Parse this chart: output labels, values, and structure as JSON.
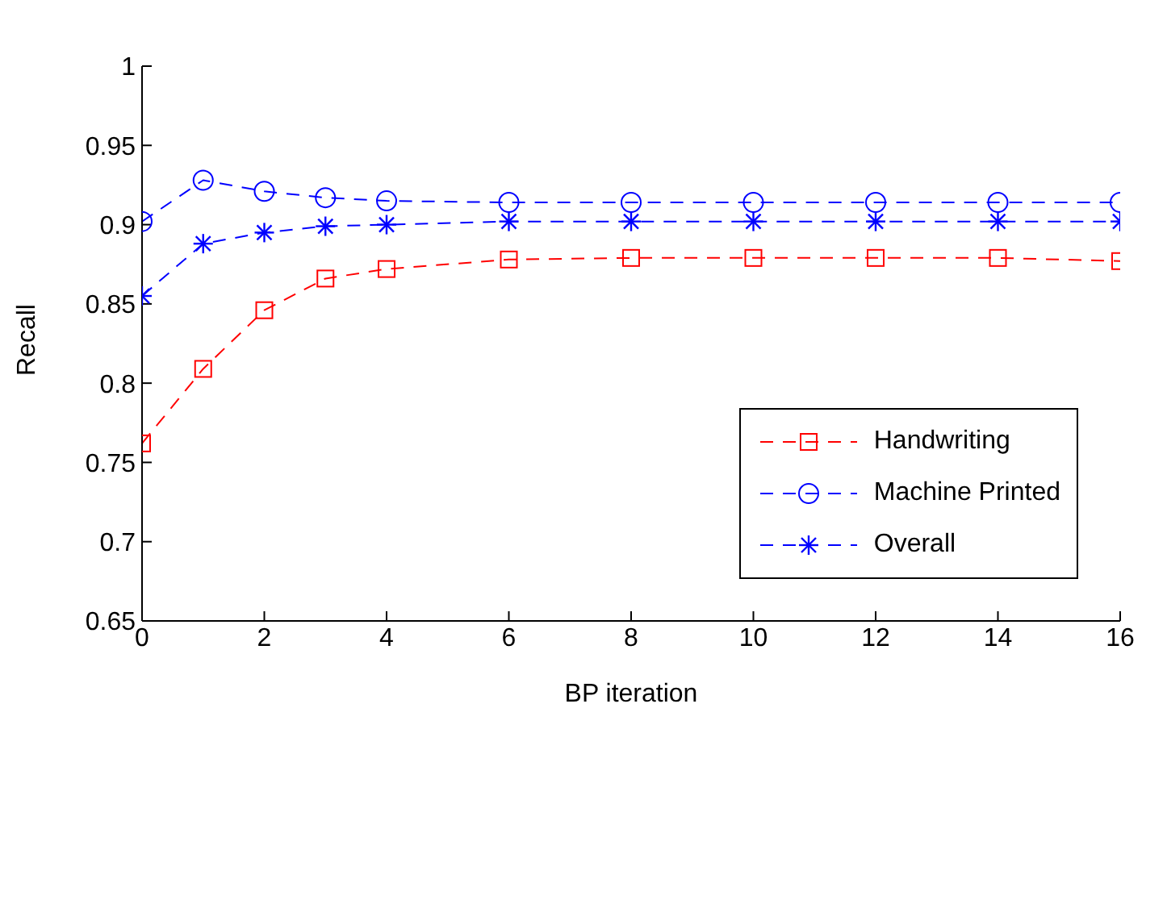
{
  "chart_data": {
    "type": "line",
    "xlabel": "BP iteration",
    "ylabel": "Recall",
    "x": [
      0,
      1,
      2,
      3,
      4,
      6,
      8,
      10,
      12,
      14,
      16
    ],
    "series": [
      {
        "name": "Handwriting",
        "color": "#ff0000",
        "marker": "square",
        "values": [
          0.762,
          0.809,
          0.846,
          0.866,
          0.872,
          0.878,
          0.879,
          0.879,
          0.879,
          0.879,
          0.877
        ]
      },
      {
        "name": "Machine Printed",
        "color": "#0000ff",
        "marker": "circle",
        "values": [
          0.902,
          0.928,
          0.921,
          0.917,
          0.915,
          0.914,
          0.914,
          0.914,
          0.914,
          0.914,
          0.914
        ]
      },
      {
        "name": "Overall",
        "color": "#0000ff",
        "marker": "cross",
        "values": [
          0.855,
          0.888,
          0.895,
          0.899,
          0.9,
          0.902,
          0.902,
          0.902,
          0.902,
          0.902,
          0.902
        ]
      }
    ],
    "xlim": [
      0,
      16
    ],
    "xticks": [
      0,
      2,
      4,
      6,
      8,
      10,
      12,
      14,
      16
    ],
    "ylim": [
      0.65,
      1
    ],
    "yticks": [
      0.65,
      0.7,
      0.75,
      0.8,
      0.85,
      0.9,
      0.95,
      1
    ],
    "line_style": "dashed",
    "legend": "right",
    "grid": false
  }
}
